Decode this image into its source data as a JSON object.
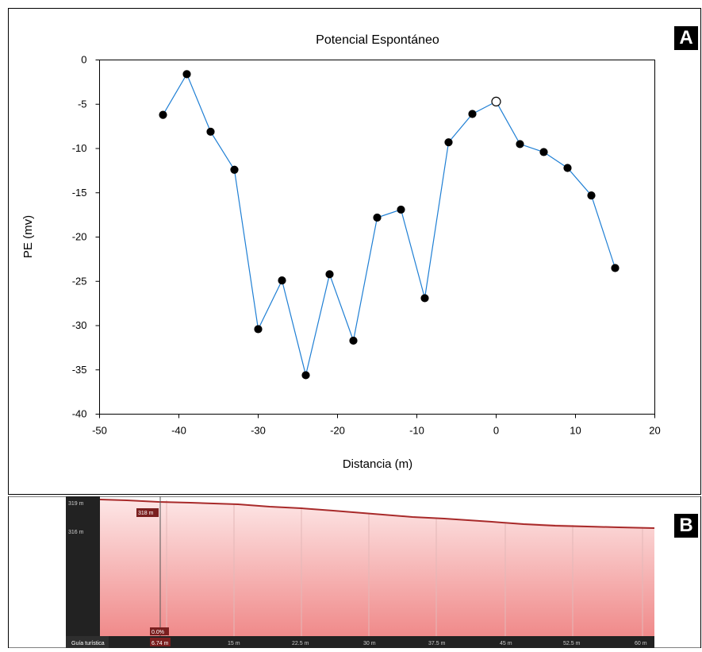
{
  "panel_a": {
    "badge": "A",
    "chart_data": {
      "type": "line",
      "title": "Potencial Espontáneo",
      "xlabel": "Distancia (m)",
      "ylabel": "PE (mv)",
      "xlim": [
        -50,
        20
      ],
      "ylim": [
        -40,
        0
      ],
      "xticks": [
        -50,
        -40,
        -30,
        -20,
        -10,
        0,
        10,
        20
      ],
      "yticks": [
        0,
        -5,
        -10,
        -15,
        -20,
        -25,
        -30,
        -35,
        -40
      ],
      "grid": false,
      "series": [
        {
          "color": "#1f7fd4",
          "x": [
            -42,
            -39,
            -36,
            -33,
            -30,
            -27,
            -24,
            -21,
            -18,
            -15,
            -12,
            -9,
            -6,
            -3,
            0,
            3,
            6,
            9,
            12,
            15
          ],
          "y": [
            -6.2,
            -1.6,
            -8.1,
            -12.4,
            -30.4,
            -24.9,
            -35.6,
            -24.2,
            -31.7,
            -17.8,
            -16.9,
            -26.9,
            -9.3,
            -6.1,
            -4.7,
            -9.5,
            -10.4,
            -12.2,
            -15.3,
            -23.5
          ]
        }
      ],
      "hollow_point_x": 0
    }
  },
  "panel_b": {
    "badge": "B",
    "elevation_labels": [
      "319 m",
      "316 m"
    ],
    "marker_elev": "318 m",
    "marker_pct": "0.0%",
    "marker_dist": "6.74 m",
    "guide_label": "Guía turística",
    "distance_ticks": [
      "15 m",
      "22.5 m",
      "30 m",
      "37.5 m",
      "45 m",
      "52.5 m",
      "60 m"
    ],
    "colors": {
      "profile_line": "#a82a2a",
      "fill_top": "#fde6e6",
      "fill_bottom": "#f08a8a",
      "sidebar": "#222222"
    }
  }
}
